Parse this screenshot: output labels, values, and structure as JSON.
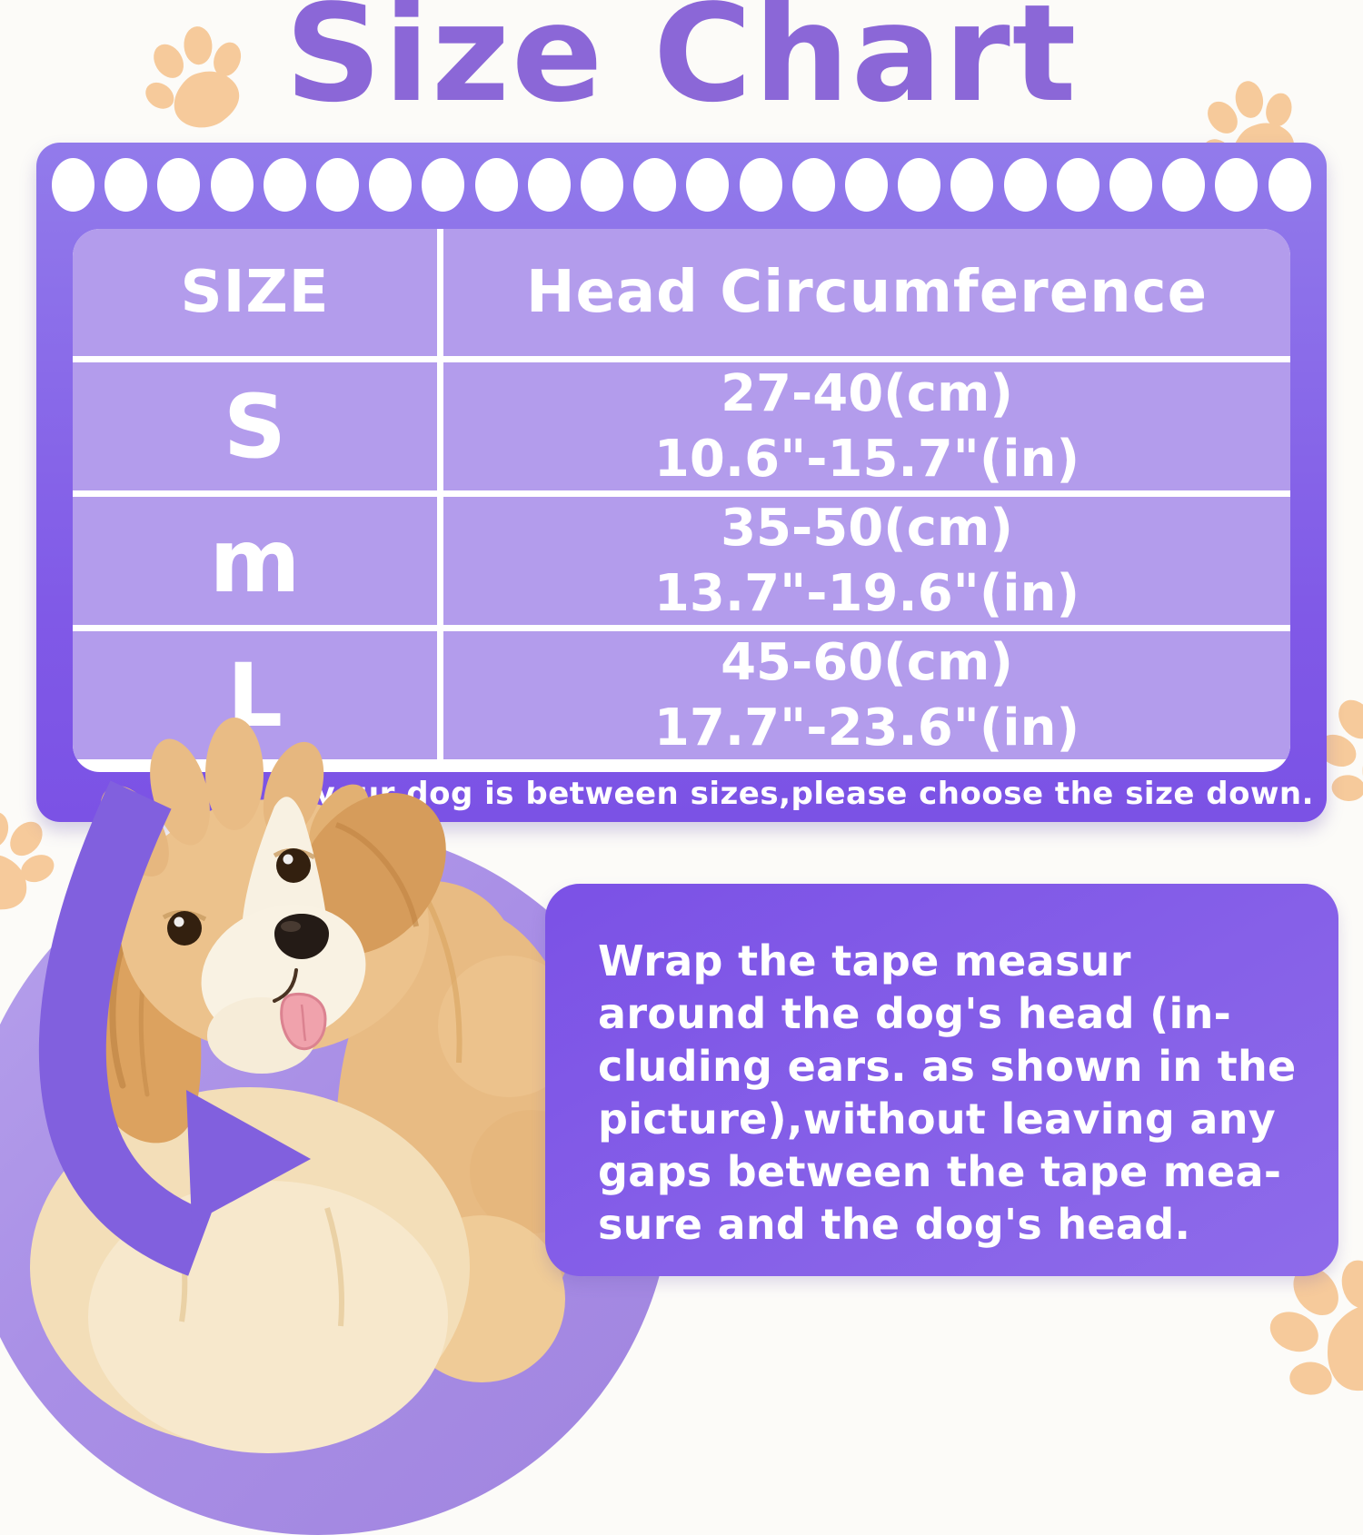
{
  "title": "Size Chart",
  "size_chart": {
    "columns": {
      "size": "SIZE",
      "head_circumference": "Head Circumference"
    },
    "rows": [
      {
        "size": "S",
        "cm": "27-40(cm)",
        "inches": "10.6\"-15.7\"(in)"
      },
      {
        "size": "m",
        "cm": "35-50(cm)",
        "inches": "13.7\"-19.6\"(in)"
      },
      {
        "size": "L",
        "cm": "45-60(cm)",
        "inches": "17.7\"-23.6\"(in)"
      }
    ],
    "note": "If your dog is between sizes,please choose the size down."
  },
  "instructions": {
    "lines": [
      "Wrap the tape measur",
      "around the dog's head (in-",
      "cluding ears. as shown in the",
      "picture),without leaving any",
      "gaps between the tape mea-",
      "sure and the dog's head."
    ]
  },
  "chart_data": {
    "type": "table",
    "title": "Size Chart",
    "columns": [
      "SIZE",
      "Head Circumference"
    ],
    "rows": [
      [
        "S",
        "27-40(cm)",
        "10.6\"-15.7\"(in)"
      ],
      [
        "m",
        "35-50(cm)",
        "13.7\"-19.6\"(in)"
      ],
      [
        "L",
        "45-60(cm)",
        "17.7\"-23.6\"(in)"
      ]
    ],
    "footnote": "If your dog is between sizes,please choose the size down."
  },
  "icons": {
    "paw_print": "paw-print-icon",
    "measuring_arrow": "measuring-arrow-icon"
  },
  "colors": {
    "title_purple": "#8B67D7",
    "panel_purple": "#7C55E6",
    "cell_purple": "#B39CEC",
    "circle_purple": "#A98FE6",
    "paw_orange": "#F6CA9B"
  },
  "decor": {
    "film_strip_dot_count": 24
  }
}
